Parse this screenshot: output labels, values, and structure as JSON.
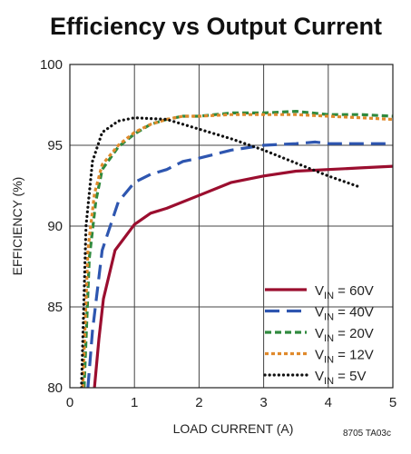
{
  "chart_data": {
    "type": "line",
    "title": "Efficiency vs Output Current",
    "xlabel": "LOAD CURRENT (A)",
    "ylabel": "EFFICIENCY (%)",
    "xlim": [
      0,
      5
    ],
    "ylim": [
      80,
      100
    ],
    "xticks": [
      "0",
      "1",
      "2",
      "3",
      "4",
      "5"
    ],
    "yticks": [
      "80",
      "85",
      "90",
      "95",
      "100"
    ],
    "grid": true,
    "legend_position": "bottom-right",
    "note": "8705 TA03c",
    "series": [
      {
        "name": "V_IN = 60V",
        "label_main": "V",
        "label_sub": "IN",
        "label_rest": " = 60V",
        "color": "#9b0e2f",
        "dash": "solid",
        "points": [
          [
            0.38,
            80
          ],
          [
            0.45,
            83
          ],
          [
            0.52,
            85.5
          ],
          [
            0.7,
            88.5
          ],
          [
            1.0,
            90.1
          ],
          [
            1.25,
            90.8
          ],
          [
            1.5,
            91.1
          ],
          [
            2.0,
            91.9
          ],
          [
            2.5,
            92.7
          ],
          [
            3.0,
            93.1
          ],
          [
            3.5,
            93.4
          ],
          [
            4.0,
            93.5
          ],
          [
            4.5,
            93.6
          ],
          [
            5.0,
            93.7
          ]
        ]
      },
      {
        "name": "V_IN = 40V",
        "label_main": "V",
        "label_sub": "IN",
        "label_rest": " = 40V",
        "color": "#2e56b0",
        "dash": "long-dash",
        "points": [
          [
            0.28,
            80
          ],
          [
            0.35,
            83.5
          ],
          [
            0.5,
            88.5
          ],
          [
            0.75,
            91.5
          ],
          [
            1.0,
            92.7
          ],
          [
            1.25,
            93.2
          ],
          [
            1.5,
            93.5
          ],
          [
            1.75,
            94.0
          ],
          [
            2.0,
            94.2
          ],
          [
            2.5,
            94.7
          ],
          [
            3.0,
            95.0
          ],
          [
            3.5,
            95.1
          ],
          [
            3.8,
            95.2
          ],
          [
            4.0,
            95.1
          ],
          [
            4.5,
            95.1
          ],
          [
            5.0,
            95.1
          ]
        ]
      },
      {
        "name": "V_IN = 20V",
        "label_main": "V",
        "label_sub": "IN",
        "label_rest": " = 20V",
        "color": "#2f8a3e",
        "dash": "dash",
        "points": [
          [
            0.22,
            80
          ],
          [
            0.3,
            88
          ],
          [
            0.4,
            91.5
          ],
          [
            0.5,
            93.5
          ],
          [
            0.75,
            94.9
          ],
          [
            1.0,
            95.7
          ],
          [
            1.25,
            96.3
          ],
          [
            1.5,
            96.6
          ],
          [
            1.75,
            96.8
          ],
          [
            2.0,
            96.8
          ],
          [
            2.5,
            97.0
          ],
          [
            3.0,
            97.0
          ],
          [
            3.5,
            97.1
          ],
          [
            4.0,
            96.9
          ],
          [
            4.5,
            96.9
          ],
          [
            5.0,
            96.8
          ]
        ]
      },
      {
        "name": "V_IN = 12V",
        "label_main": "V",
        "label_sub": "IN",
        "label_rest": " = 12V",
        "color": "#e08a2c",
        "dash": "short-dash",
        "points": [
          [
            0.2,
            80
          ],
          [
            0.28,
            88.5
          ],
          [
            0.38,
            92
          ],
          [
            0.5,
            93.8
          ],
          [
            0.75,
            95.0
          ],
          [
            1.0,
            95.8
          ],
          [
            1.25,
            96.3
          ],
          [
            1.5,
            96.6
          ],
          [
            1.75,
            96.8
          ],
          [
            2.0,
            96.8
          ],
          [
            2.5,
            96.9
          ],
          [
            3.0,
            96.9
          ],
          [
            3.5,
            96.9
          ],
          [
            4.0,
            96.8
          ],
          [
            4.5,
            96.7
          ],
          [
            5.0,
            96.6
          ]
        ]
      },
      {
        "name": "V_IN = 5V",
        "label_main": "V",
        "label_sub": "IN",
        "label_rest": " = 5V",
        "color": "#111111",
        "dash": "dot",
        "points": [
          [
            0.18,
            80
          ],
          [
            0.25,
            90
          ],
          [
            0.35,
            94
          ],
          [
            0.5,
            95.8
          ],
          [
            0.75,
            96.5
          ],
          [
            1.0,
            96.7
          ],
          [
            1.5,
            96.6
          ],
          [
            2.0,
            96.0
          ],
          [
            2.5,
            95.4
          ],
          [
            3.0,
            94.7
          ],
          [
            3.5,
            93.9
          ],
          [
            4.0,
            93.1
          ],
          [
            4.5,
            92.4
          ]
        ]
      }
    ]
  }
}
